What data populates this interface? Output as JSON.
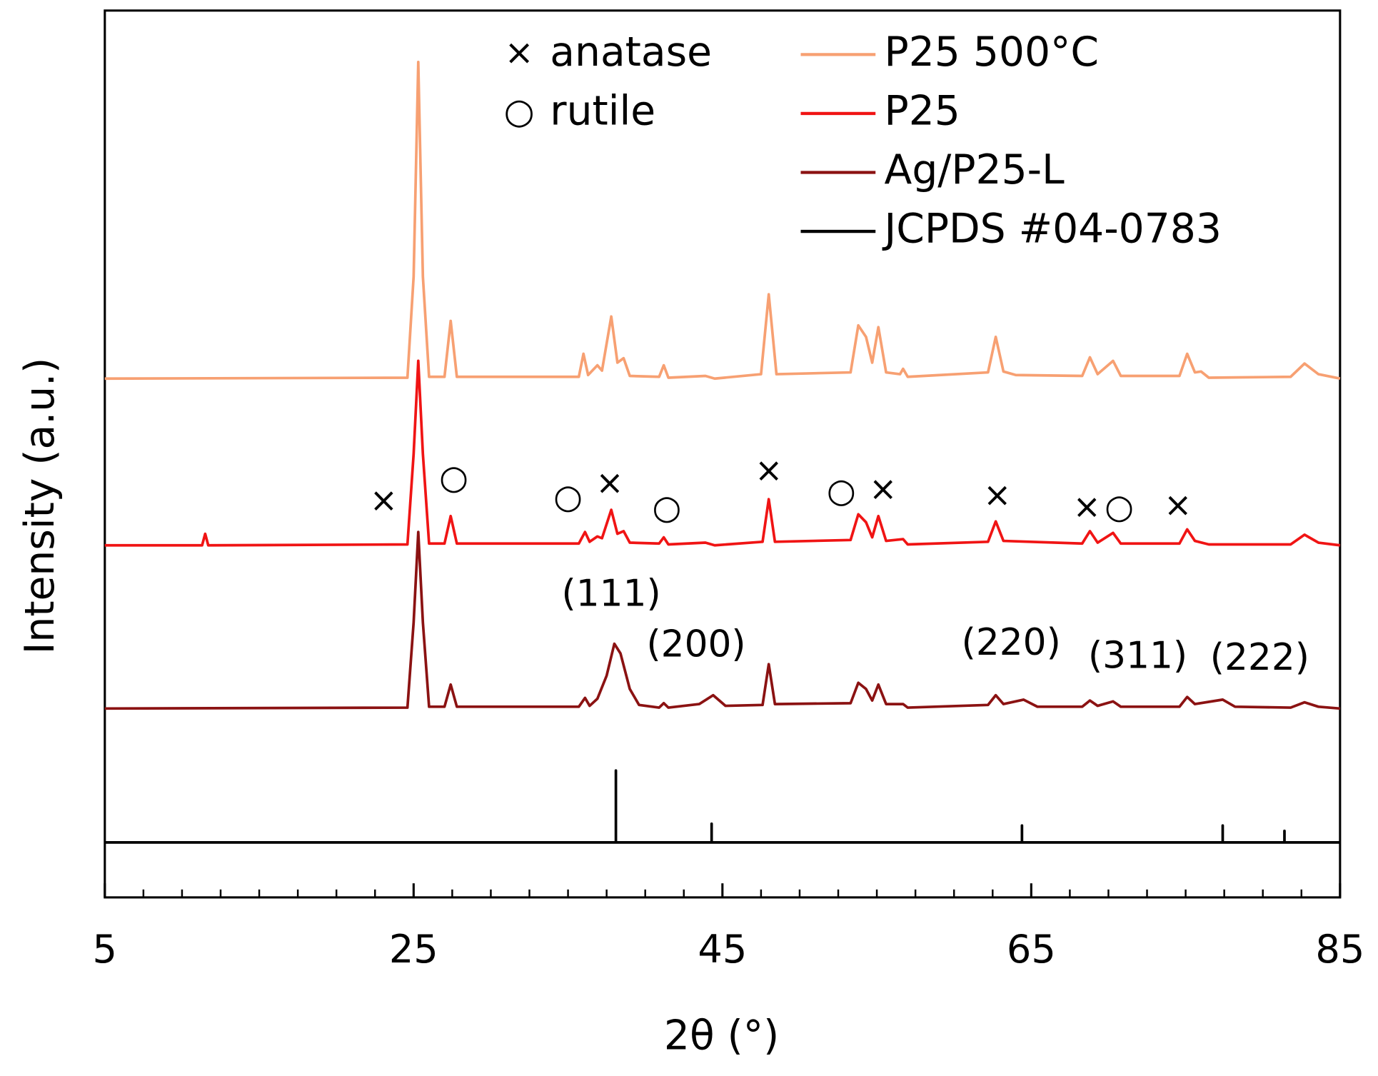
{
  "chart_data": {
    "type": "line",
    "x_label": "2θ (°)",
    "y_label": "Intensity (a.u.)",
    "xlim": [
      5,
      85
    ],
    "ylim": [
      0,
      100
    ],
    "xticks": [
      5,
      25,
      45,
      65,
      85
    ],
    "xminorticks": [
      7.5,
      10,
      12.5,
      15,
      17.5,
      20,
      22.5,
      27.5,
      30,
      32.5,
      35,
      37.5,
      40,
      42.5,
      47.5,
      50,
      52.5,
      55,
      57.5,
      60,
      62.5,
      67.5,
      70,
      72.5,
      75,
      77.5,
      80,
      82.5
    ],
    "series": [
      {
        "name": "P25 500°C",
        "color": "#f7a072",
        "x": [
          5,
          24.6,
          25.0,
          25.3,
          25.6,
          26.0,
          27.0,
          27.4,
          27.8,
          35.7,
          36.0,
          36.3,
          36.9,
          37.2,
          37.8,
          38.2,
          38.6,
          39.0,
          40.9,
          41.2,
          41.5,
          43.9,
          44.5,
          47.5,
          48.0,
          48.5,
          53.3,
          53.8,
          54.3,
          54.7,
          55.1,
          55.6,
          56.5,
          56.7,
          57.0,
          62.2,
          62.7,
          63.2,
          64.0,
          68.3,
          68.8,
          69.3,
          70.3,
          70.8,
          74.6,
          75.1,
          75.6,
          76.0,
          76.5,
          81.8,
          82.7,
          83.6,
          85
        ],
        "values": [
          58.5,
          58.6,
          70,
          94.2,
          70,
          58.7,
          58.7,
          65.0,
          58.7,
          58.7,
          61.3,
          58.9,
          60.0,
          59.4,
          65.5,
          60.3,
          60.8,
          58.8,
          58.7,
          60.0,
          58.6,
          58.8,
          58.5,
          59.0,
          68.0,
          59.0,
          59.2,
          64.5,
          63.2,
          60.3,
          64.3,
          59.2,
          59.0,
          59.6,
          58.7,
          59.2,
          63.2,
          59.3,
          58.9,
          58.8,
          60.9,
          59.0,
          60.5,
          58.8,
          58.8,
          61.3,
          59.2,
          59.3,
          58.6,
          58.7,
          60.2,
          59.0,
          58.5
        ]
      },
      {
        "name": "P25",
        "color": "#f01414",
        "x": [
          5,
          11.3,
          11.5,
          11.7,
          24.6,
          25.0,
          25.3,
          25.6,
          26.0,
          27.0,
          27.4,
          27.8,
          35.7,
          36.1,
          36.4,
          36.9,
          37.2,
          37.8,
          38.2,
          38.6,
          39.0,
          40.9,
          41.2,
          41.5,
          43.9,
          44.5,
          47.6,
          48.0,
          48.4,
          53.3,
          53.8,
          54.3,
          54.7,
          55.1,
          55.6,
          56.7,
          57.0,
          62.2,
          62.7,
          63.2,
          68.3,
          68.8,
          69.3,
          70.3,
          70.8,
          74.6,
          75.1,
          75.6,
          76.5,
          81.8,
          82.7,
          83.6,
          85
        ],
        "values": [
          39.7,
          39.7,
          41.0,
          39.7,
          39.8,
          50,
          60.5,
          50,
          39.9,
          39.9,
          43.0,
          39.9,
          39.9,
          41.2,
          40.1,
          40.7,
          40.5,
          43.7,
          41.0,
          41.3,
          40.0,
          39.9,
          40.6,
          39.8,
          40.0,
          39.7,
          40.1,
          44.9,
          40.1,
          40.3,
          43.2,
          42.3,
          40.6,
          43.0,
          40.2,
          40.4,
          39.8,
          40.1,
          42.4,
          40.2,
          39.9,
          41.3,
          40.0,
          41.1,
          39.9,
          39.9,
          41.5,
          40.2,
          39.8,
          39.8,
          40.9,
          40.0,
          39.7
        ]
      },
      {
        "name": "Ag/P25-L",
        "color": "#8b1212",
        "x": [
          5,
          24.6,
          25.0,
          25.3,
          25.6,
          26.0,
          27.0,
          27.4,
          27.8,
          35.7,
          36.1,
          36.4,
          36.9,
          37.5,
          38.0,
          38.4,
          39.0,
          39.6,
          40.9,
          41.2,
          41.5,
          43.5,
          44.4,
          45.2,
          47.6,
          48.0,
          48.4,
          53.3,
          53.8,
          54.3,
          54.7,
          55.1,
          55.6,
          56.7,
          57.0,
          62.2,
          62.7,
          63.2,
          64.5,
          65.4,
          68.3,
          68.8,
          69.3,
          70.3,
          70.8,
          74.6,
          75.1,
          75.6,
          77.4,
          78.2,
          81.8,
          82.7,
          83.6,
          85
        ],
        "values": [
          21.3,
          21.4,
          31,
          41.2,
          31,
          21.5,
          21.5,
          24.0,
          21.5,
          21.5,
          22.5,
          21.6,
          22.4,
          25.0,
          28.6,
          27.5,
          23.5,
          21.7,
          21.4,
          21.9,
          21.4,
          21.8,
          22.8,
          21.6,
          21.7,
          26.3,
          21.8,
          21.9,
          24.2,
          23.5,
          22.2,
          24.0,
          21.8,
          21.8,
          21.4,
          21.7,
          22.8,
          21.8,
          22.3,
          21.5,
          21.5,
          22.2,
          21.6,
          22.1,
          21.5,
          21.5,
          22.6,
          21.8,
          22.3,
          21.5,
          21.4,
          22.0,
          21.5,
          21.3
        ]
      },
      {
        "name": "JCPDS #04-0783",
        "color": "#000000",
        "x": [
          5,
          38.1,
          38.1,
          38.1,
          44.3,
          44.3,
          44.3,
          64.4,
          64.4,
          64.4,
          77.4,
          77.4,
          77.4,
          81.4,
          81.4,
          81.4,
          85
        ],
        "values": [
          6.2,
          6.2,
          14.3,
          6.2,
          6.2,
          8.3,
          6.2,
          6.2,
          8.1,
          6.2,
          6.2,
          8.1,
          6.2,
          6.2,
          7.5,
          6.2,
          6.2
        ]
      }
    ],
    "phase_legend": [
      {
        "symbol": "×",
        "label": "anatase"
      },
      {
        "symbol": "○",
        "label": "rutile"
      }
    ],
    "annotations": [
      {
        "text": "×",
        "x": 23.06,
        "y": 44.5
      },
      {
        "text": "×",
        "x": 37.7,
        "y": 46.5
      },
      {
        "text": "×",
        "x": 48.0,
        "y": 47.9
      },
      {
        "text": "×",
        "x": 55.4,
        "y": 45.8
      },
      {
        "text": "×",
        "x": 62.8,
        "y": 45.1
      },
      {
        "text": "×",
        "x": 68.6,
        "y": 43.8
      },
      {
        "text": "×",
        "x": 74.5,
        "y": 44.0
      },
      {
        "text": "○",
        "x": 27.6,
        "y": 47.1
      },
      {
        "text": "○",
        "x": 35.0,
        "y": 44.9
      },
      {
        "text": "○",
        "x": 41.4,
        "y": 43.7
      },
      {
        "text": "○",
        "x": 52.7,
        "y": 45.6
      },
      {
        "text": "○",
        "x": 70.7,
        "y": 43.8
      },
      {
        "text": "(111)",
        "x": 37.8,
        "y": 34.0
      },
      {
        "text": "(200)",
        "x": 43.3,
        "y": 28.3
      },
      {
        "text": "(220)",
        "x": 63.7,
        "y": 28.5
      },
      {
        "text": "(311)",
        "x": 71.9,
        "y": 27.0
      },
      {
        "text": "(222)",
        "x": 79.8,
        "y": 26.8
      }
    ]
  }
}
